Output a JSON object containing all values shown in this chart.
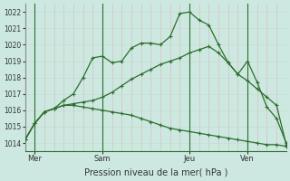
{
  "xlabel": "Pression niveau de la mer( hPa )",
  "background_color": "#cce8e0",
  "grid_color_minor": "#e8c8c8",
  "grid_color_major": "#b8d8d0",
  "line_color": "#2d6e2d",
  "ylim": [
    1013.5,
    1022.5
  ],
  "yticks": [
    1014,
    1015,
    1016,
    1017,
    1018,
    1019,
    1020,
    1021,
    1022
  ],
  "xlim": [
    0,
    27
  ],
  "xtick_positions": [
    1,
    8,
    17,
    23
  ],
  "xtick_labels": [
    "Mer",
    "Sam",
    "Jeu",
    "Ven"
  ],
  "vline_positions": [
    1,
    8,
    17,
    23
  ],
  "line1": [
    1014.2,
    1015.2,
    1015.9,
    1016.1,
    1016.6,
    1017.0,
    1018.0,
    1019.2,
    1019.3,
    1018.9,
    1019.0,
    1019.8,
    1020.1,
    1020.1,
    1020.0,
    1020.5,
    1021.9,
    1022.0,
    1021.5,
    1021.2,
    1020.0,
    1018.9,
    1018.2,
    1019.0,
    1017.7,
    1016.2,
    1015.5,
    1014.0
  ],
  "line2": [
    1014.2,
    1015.2,
    1015.9,
    1016.1,
    1016.3,
    1016.4,
    1016.5,
    1016.6,
    1016.8,
    1017.1,
    1017.5,
    1017.9,
    1018.2,
    1018.5,
    1018.8,
    1019.0,
    1019.2,
    1019.5,
    1019.7,
    1019.9,
    1019.5,
    1018.9,
    1018.2,
    1017.8,
    1017.3,
    1016.8,
    1016.3,
    1013.9
  ],
  "line3": [
    1014.2,
    1015.2,
    1015.9,
    1016.1,
    1016.3,
    1016.3,
    1016.2,
    1016.1,
    1016.0,
    1015.9,
    1015.8,
    1015.7,
    1015.5,
    1015.3,
    1015.1,
    1014.9,
    1014.8,
    1014.7,
    1014.6,
    1014.5,
    1014.4,
    1014.3,
    1014.2,
    1014.1,
    1014.0,
    1013.9,
    1013.9,
    1013.8
  ]
}
